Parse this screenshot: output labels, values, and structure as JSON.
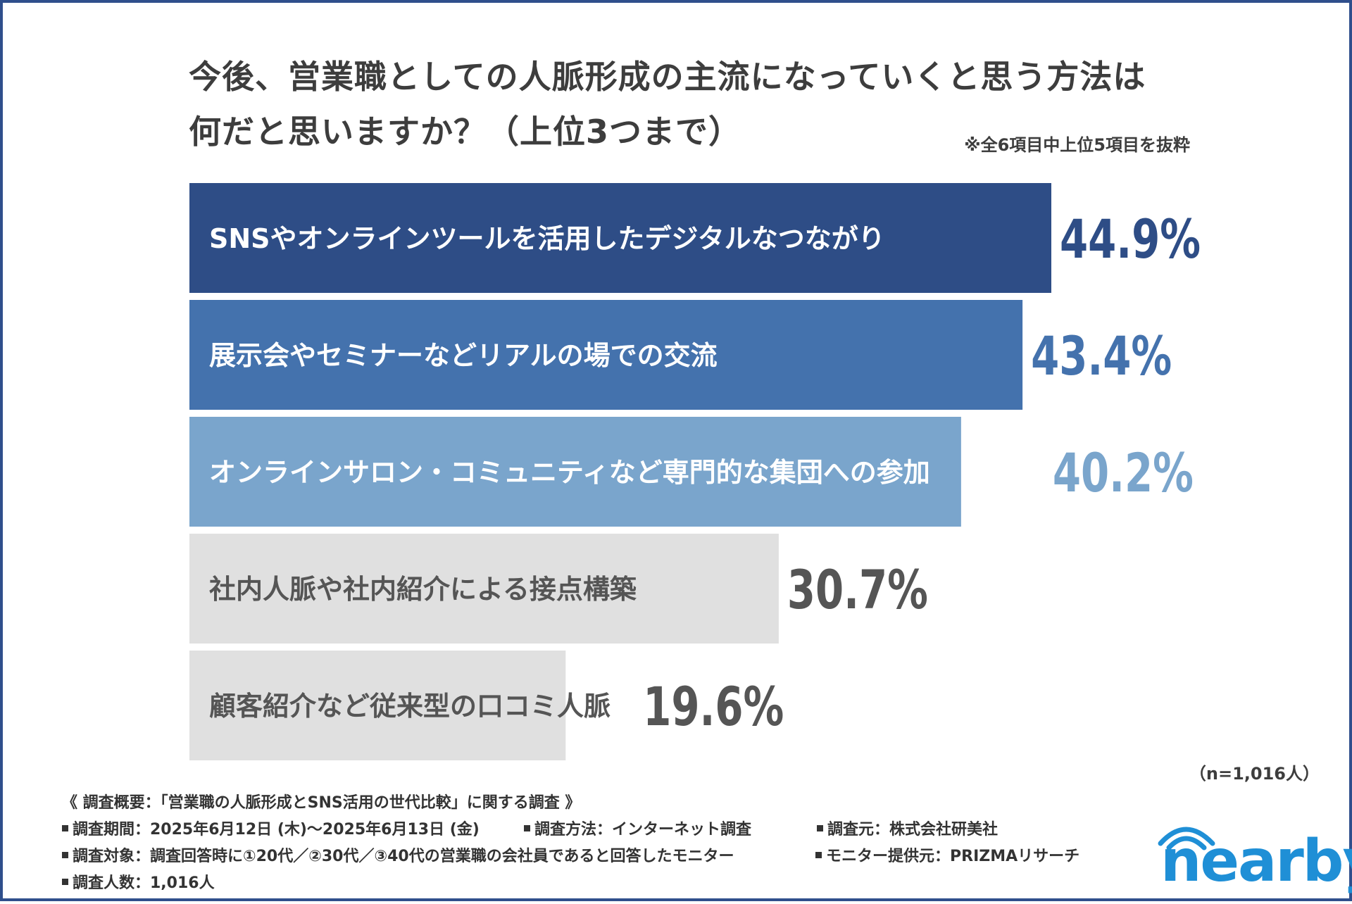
{
  "title_line1": "今後、営業職としての人脈形成の主流になっていくと思う方法は",
  "title_line2": "何だと思いますか？（上位3つまで）",
  "note": "※全6項目中上位5項目を抜粋",
  "sample_label": "（n=1,016人）",
  "chart_data": {
    "type": "bar",
    "orientation": "horizontal",
    "categories": [
      "SNSやオンラインツールを活用したデジタルなつながり",
      "展示会やセミナーなどリアルの場での交流",
      "オンラインサロン・コミュニティなど専門的な集団への参加",
      "社内人脈や社内紹介による接点構築",
      "顧客紹介など従来型の口コミ人脈"
    ],
    "values": [
      44.9,
      43.4,
      40.2,
      30.7,
      19.6
    ],
    "value_labels": [
      "44.9%",
      "43.4%",
      "40.2%",
      "30.7%",
      "19.6%"
    ],
    "xlim": [
      0,
      44.9
    ],
    "bar_colors": [
      "#2e4d86",
      "#4472ad",
      "#7aa5cc",
      "#e0e0e0",
      "#e0e0e0"
    ],
    "label_colors": [
      "#ffffff",
      "#ffffff",
      "#ffffff",
      "#555555",
      "#555555"
    ],
    "value_colors": [
      "#2e4d86",
      "#4472ad",
      "#7aa5cc",
      "#555555",
      "#555555"
    ]
  },
  "survey": {
    "heading": "《 調査概要：「営業職の人脈形成とSNS活用の世代比較」に関する調査 》",
    "period": "調査期間：2025年6月12日 (木)～2025年6月13日 (金)",
    "method": "調査方法：インターネット調査",
    "organizer": "調査元：株式会社研美社",
    "target": "調査対象：調査回答時に①20代／②30代／③40代の営業職の会社員であると回答したモニター",
    "provider": "モニター提供元：PRIZMAリサーチ",
    "count": "調査人数：1,016人"
  },
  "logo": {
    "text": "nearby",
    "color": "#1f8fd6"
  }
}
